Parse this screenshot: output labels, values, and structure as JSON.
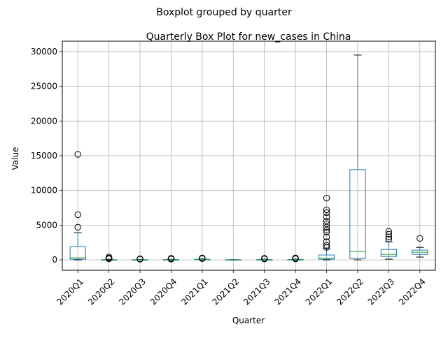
{
  "chart_data": {
    "type": "boxplot",
    "suptitle": "Boxplot grouped by quarter",
    "title": "Quarterly Box Plot for new_cases in China",
    "xlabel": "Quarter",
    "ylabel": "Value",
    "ylim": [
      -1500,
      31500
    ],
    "yticks": [
      0,
      5000,
      10000,
      15000,
      20000,
      25000,
      30000
    ],
    "ytick_labels": [
      "0",
      "5000",
      "10000",
      "15000",
      "20000",
      "25000",
      "30000"
    ],
    "grid": true,
    "box_color": "#1f77b4",
    "median_color": "#2ca02c",
    "categories": [
      "2020Q1",
      "2020Q2",
      "2020Q3",
      "2020Q4",
      "2021Q1",
      "2021Q2",
      "2021Q3",
      "2021Q4",
      "2022Q1",
      "2022Q2",
      "2022Q3",
      "2022Q4"
    ],
    "boxes": [
      {
        "whislo": 0,
        "q1": 100,
        "med": 300,
        "q3": 1900,
        "whishi": 3900,
        "fliers": [
          4700,
          6500,
          15200
        ]
      },
      {
        "whislo": 0,
        "q1": 0,
        "med": 10,
        "q3": 30,
        "whishi": 80,
        "fliers": [
          150,
          250,
          400
        ]
      },
      {
        "whislo": 0,
        "q1": 5,
        "med": 15,
        "q3": 30,
        "whishi": 60,
        "fliers": [
          90,
          120,
          150
        ]
      },
      {
        "whislo": 0,
        "q1": 10,
        "med": 20,
        "q3": 40,
        "whishi": 80,
        "fliers": [
          120,
          160,
          220
        ]
      },
      {
        "whislo": 0,
        "q1": 20,
        "med": 40,
        "q3": 80,
        "whishi": 140,
        "fliers": [
          180,
          220,
          260
        ]
      },
      {
        "whislo": 0,
        "q1": 5,
        "med": 15,
        "q3": 25,
        "whishi": 40,
        "fliers": []
      },
      {
        "whislo": 0,
        "q1": 10,
        "med": 25,
        "q3": 50,
        "whishi": 100,
        "fliers": [
          130,
          170,
          220
        ]
      },
      {
        "whislo": 0,
        "q1": 10,
        "med": 30,
        "q3": 60,
        "whishi": 110,
        "fliers": [
          150,
          200,
          260
        ]
      },
      {
        "whislo": 0,
        "q1": 100,
        "med": 250,
        "q3": 700,
        "whishi": 1600,
        "fliers": [
          1800,
          2100,
          2600,
          3300,
          4000,
          4300,
          4700,
          5200,
          5600,
          6200,
          6800,
          7200,
          8900
        ]
      },
      {
        "whislo": 0,
        "q1": 200,
        "med": 1200,
        "q3": 13000,
        "whishi": 29500,
        "fliers": []
      },
      {
        "whislo": 100,
        "q1": 500,
        "med": 800,
        "q3": 1500,
        "whishi": 2600,
        "fliers": [
          3000,
          3300,
          3700,
          4100
        ]
      },
      {
        "whislo": 400,
        "q1": 800,
        "med": 1100,
        "q3": 1400,
        "whishi": 1800,
        "fliers": [
          3100
        ]
      }
    ]
  }
}
